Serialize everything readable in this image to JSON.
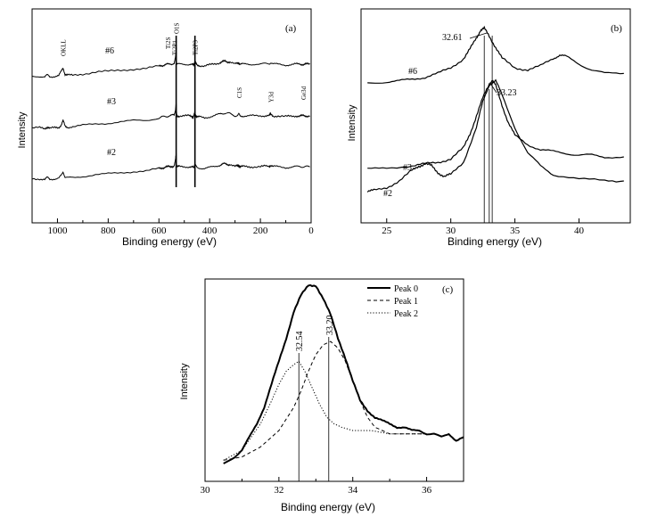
{
  "chart_data": [
    {
      "panel": "(a)",
      "type": "line",
      "xlabel": "Binding energy (eV)",
      "ylabel": "Intensity",
      "xlim": [
        1100,
        0
      ],
      "xticks": [
        1000,
        800,
        600,
        400,
        200,
        0
      ],
      "series": [
        {
          "name": "#6",
          "x": [
            1100,
            1070,
            1050,
            1040,
            1030,
            1010,
            995,
            985,
            978,
            970,
            960,
            940,
            900,
            850,
            800,
            750,
            700,
            650,
            600,
            590,
            580,
            570,
            560,
            550,
            540,
            535,
            532,
            530,
            528,
            520,
            500,
            480,
            470,
            465,
            462,
            458,
            455,
            450,
            440,
            420,
            400,
            380,
            360,
            350,
            340,
            330,
            320,
            300,
            290,
            285,
            280,
            270,
            250,
            230,
            200,
            180,
            165,
            160,
            150,
            130,
            100,
            80,
            60,
            45,
            35,
            25,
            15,
            5
          ],
          "y": [
            30,
            30,
            28,
            33,
            29,
            30,
            31,
            42,
            52,
            34,
            32,
            33,
            36,
            40,
            42,
            45,
            48,
            49,
            55,
            57,
            58,
            59,
            60,
            61,
            62,
            75,
            92,
            62,
            60,
            60,
            60,
            60,
            59,
            58,
            60,
            69,
            62,
            58,
            57,
            55,
            58,
            61,
            64,
            66,
            67,
            66,
            66,
            60,
            62,
            64,
            60,
            60,
            60,
            60,
            60,
            61,
            61,
            64,
            60,
            60,
            58,
            59,
            60,
            60,
            60,
            60,
            60,
            60
          ]
        },
        {
          "name": "#3",
          "x": [
            1100,
            1070,
            1050,
            1040,
            1030,
            1010,
            995,
            985,
            978,
            970,
            960,
            940,
            900,
            850,
            800,
            750,
            700,
            650,
            600,
            590,
            580,
            570,
            560,
            550,
            540,
            535,
            532,
            530,
            528,
            520,
            500,
            480,
            470,
            465,
            462,
            458,
            455,
            450,
            440,
            420,
            400,
            380,
            360,
            350,
            340,
            330,
            320,
            300,
            290,
            285,
            280,
            270,
            250,
            230,
            200,
            180,
            165,
            160,
            150,
            130,
            100,
            80,
            60,
            45,
            35,
            25,
            15,
            5
          ],
          "y": [
            30,
            30,
            28,
            33,
            29,
            30,
            31,
            38,
            48,
            34,
            32,
            33,
            36,
            40,
            42,
            45,
            48,
            49,
            55,
            57,
            58,
            59,
            60,
            61,
            62,
            75,
            92,
            62,
            60,
            60,
            60,
            60,
            59,
            58,
            60,
            69,
            62,
            58,
            57,
            55,
            58,
            61,
            64,
            66,
            67,
            66,
            66,
            60,
            62,
            64,
            60,
            60,
            60,
            60,
            60,
            61,
            61,
            64,
            60,
            60,
            58,
            59,
            60,
            60,
            60,
            60,
            60,
            60
          ]
        },
        {
          "name": "#2",
          "x": [
            1100,
            1070,
            1050,
            1040,
            1030,
            1010,
            995,
            985,
            978,
            970,
            960,
            940,
            900,
            850,
            800,
            750,
            700,
            650,
            600,
            590,
            580,
            570,
            560,
            550,
            540,
            535,
            532,
            530,
            528,
            520,
            500,
            480,
            470,
            465,
            462,
            458,
            455,
            450,
            440,
            420,
            400,
            380,
            360,
            350,
            340,
            330,
            320,
            300,
            290,
            285,
            280,
            270,
            250,
            230,
            200,
            180,
            165,
            160,
            150,
            130,
            100,
            80,
            60,
            45,
            35,
            25,
            15,
            5
          ],
          "y": [
            30,
            30,
            28,
            33,
            29,
            30,
            31,
            38,
            48,
            34,
            32,
            33,
            36,
            40,
            42,
            45,
            48,
            49,
            55,
            57,
            58,
            59,
            60,
            61,
            62,
            75,
            92,
            62,
            60,
            60,
            60,
            60,
            59,
            58,
            60,
            69,
            62,
            58,
            57,
            55,
            58,
            61,
            64,
            66,
            67,
            66,
            66,
            60,
            62,
            64,
            60,
            60,
            60,
            60,
            60,
            61,
            61,
            64,
            60,
            60,
            58,
            59,
            60,
            60,
            60,
            60,
            60,
            60
          ]
        }
      ],
      "annotations": [
        "OKLL",
        "Ti2S",
        "O1S",
        "Ti2P1",
        "Ti2P3",
        "C1S",
        "Y3d",
        "Ge3d"
      ]
    },
    {
      "panel": "(b)",
      "type": "line",
      "xlabel": "Binding energy (eV)",
      "ylabel": "Intensity",
      "xlim": [
        23,
        44
      ],
      "xticks": [
        25,
        30,
        35,
        40
      ],
      "series": [
        {
          "name": "#6",
          "x": [
            23.5,
            25,
            26,
            27,
            28,
            29,
            30,
            31,
            31.5,
            32,
            32.3,
            32.61,
            33,
            33.5,
            34,
            35,
            36,
            37,
            38,
            38.5,
            39,
            40,
            41,
            42,
            43.5
          ],
          "y": [
            1,
            1.5,
            2,
            3,
            4,
            6,
            9,
            14,
            19,
            25,
            29,
            30,
            26,
            20,
            14,
            9,
            8,
            10,
            14,
            16,
            15,
            11,
            8,
            6,
            6
          ]
        },
        {
          "name": "#3",
          "x": [
            23.5,
            25,
            27,
            28,
            29,
            30,
            31,
            31.5,
            32,
            32.5,
            33,
            33.23,
            33.5,
            34,
            34.5,
            35,
            36,
            37,
            38,
            39,
            40,
            41,
            42,
            43.5
          ],
          "y": [
            0,
            1,
            2,
            3,
            4,
            6,
            12,
            20,
            30,
            40,
            48,
            50,
            47,
            36,
            26,
            19,
            14,
            11,
            10,
            9,
            8,
            8,
            7,
            7
          ]
        },
        {
          "name": "#2",
          "x": [
            23.5,
            24,
            25,
            26,
            27,
            27.5,
            28,
            28.5,
            29,
            29.5,
            30,
            31,
            32,
            32.5,
            33,
            33.5,
            34,
            35,
            36,
            37,
            38,
            40,
            42,
            43.5
          ],
          "y": [
            0,
            0.5,
            2,
            5,
            10,
            12,
            13,
            12,
            9,
            7,
            8,
            14,
            30,
            42,
            50,
            52,
            45,
            30,
            18,
            12,
            8,
            6,
            5,
            5
          ]
        }
      ],
      "annotations": [
        "32.61",
        "33.23"
      ]
    },
    {
      "panel": "(c)",
      "type": "line",
      "xlabel": "Binding energy (eV)",
      "ylabel": "Intensity",
      "xlim": [
        30,
        37
      ],
      "xticks": [
        30,
        32,
        34,
        36
      ],
      "series": [
        {
          "name": "Peak 0",
          "x": [
            30.5,
            30.8,
            31,
            31.2,
            31.4,
            31.6,
            31.8,
            32,
            32.2,
            32.4,
            32.6,
            32.8,
            33,
            33.2,
            33.4,
            33.6,
            33.8,
            34,
            34.2,
            34.4,
            34.6,
            34.8,
            35,
            35.2,
            35.4,
            35.6,
            35.8,
            36,
            36.2,
            36.4,
            36.6,
            36.8,
            37
          ],
          "y": [
            0,
            2,
            4,
            8,
            12,
            17,
            24,
            31,
            38,
            46,
            51,
            54,
            54,
            50,
            45,
            38,
            32,
            25,
            19,
            16,
            14,
            13,
            12,
            11,
            11,
            10,
            10,
            9,
            9,
            8,
            9,
            7,
            8
          ]
        },
        {
          "name": "Peak 1",
          "x": [
            30.5,
            31,
            31.5,
            32,
            32.4,
            32.6,
            32.8,
            33,
            33.2,
            33.4,
            33.6,
            33.8,
            34,
            34.2,
            34.4,
            34.6,
            35,
            35.5,
            36
          ],
          "y": [
            1,
            2,
            5,
            10,
            17,
            22,
            28,
            33,
            36,
            37,
            35,
            31,
            25,
            19,
            14,
            11,
            9,
            9,
            9
          ]
        },
        {
          "name": "Peak 2",
          "x": [
            30.5,
            31,
            31.5,
            31.8,
            32,
            32.2,
            32.4,
            32.54,
            32.7,
            32.9,
            33.1,
            33.3,
            33.5,
            33.7,
            34,
            34.5,
            35,
            35.5,
            36
          ],
          "y": [
            1,
            4,
            12,
            19,
            24,
            28,
            30,
            31,
            28,
            23,
            18,
            14,
            12,
            11,
            10,
            10,
            9,
            9,
            9
          ]
        }
      ],
      "legend": "top-right",
      "annotations": [
        "32.54",
        "33.20"
      ]
    }
  ]
}
